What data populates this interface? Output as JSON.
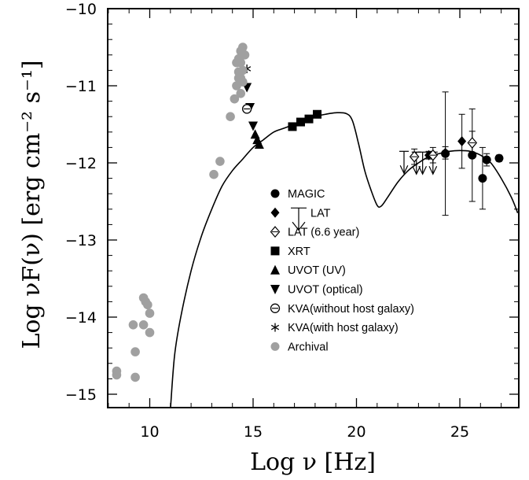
{
  "chart_data": {
    "type": "scatter",
    "xlabel": "Log ν [Hz]",
    "ylabel": "Log νF(ν) [erg cm⁻² s⁻¹]",
    "xlim": [
      8,
      27.8
    ],
    "ylim": [
      -15.15,
      -10
    ],
    "x_ticks": [
      "10",
      "15",
      "20",
      "25"
    ],
    "y_ticks": [
      "−10",
      "−11",
      "−12",
      "−13",
      "−14",
      "−15"
    ],
    "grid": false,
    "legend_position": "center",
    "model_curve": {
      "name": "",
      "points": [
        [
          11.0,
          -15.2
        ],
        [
          11.2,
          -14.5
        ],
        [
          11.5,
          -14.0
        ],
        [
          12.0,
          -13.4
        ],
        [
          12.5,
          -12.95
        ],
        [
          13.0,
          -12.6
        ],
        [
          13.5,
          -12.3
        ],
        [
          14.0,
          -12.1
        ],
        [
          14.5,
          -11.95
        ],
        [
          15.0,
          -11.8
        ],
        [
          15.5,
          -11.7
        ],
        [
          16.0,
          -11.6
        ],
        [
          16.5,
          -11.55
        ],
        [
          17.0,
          -11.5
        ],
        [
          17.5,
          -11.45
        ],
        [
          18.0,
          -11.4
        ],
        [
          18.5,
          -11.37
        ],
        [
          19.0,
          -11.35
        ],
        [
          19.5,
          -11.36
        ],
        [
          19.8,
          -11.45
        ],
        [
          20.1,
          -11.75
        ],
        [
          20.4,
          -12.1
        ],
        [
          20.7,
          -12.35
        ],
        [
          21.0,
          -12.55
        ],
        [
          21.2,
          -12.56
        ],
        [
          21.5,
          -12.45
        ],
        [
          22.0,
          -12.25
        ],
        [
          22.5,
          -12.1
        ],
        [
          23.0,
          -12.0
        ],
        [
          23.5,
          -11.92
        ],
        [
          24.0,
          -11.88
        ],
        [
          24.5,
          -11.85
        ],
        [
          25.0,
          -11.84
        ],
        [
          25.5,
          -11.85
        ],
        [
          26.0,
          -11.9
        ],
        [
          26.5,
          -12.0
        ],
        [
          27.0,
          -12.2
        ],
        [
          27.5,
          -12.45
        ],
        [
          27.8,
          -12.65
        ]
      ]
    },
    "series": [
      {
        "name": "MAGIC",
        "marker": "circle",
        "color": "#000000",
        "points": [
          [
            25.6,
            -11.9,
            0.6
          ],
          [
            26.3,
            -11.96,
            0.08
          ],
          [
            26.9,
            -11.94,
            0.04
          ],
          [
            26.1,
            -12.2,
            0.4
          ],
          [
            24.3,
            -11.88,
            0.8
          ]
        ]
      },
      {
        "name": "LAT",
        "marker": "diamond",
        "color": "#000000",
        "points": [
          [
            23.5,
            -11.9,
            0.05
          ],
          [
            24.3,
            -11.87,
            0.08
          ],
          [
            25.1,
            -11.72,
            0.35
          ]
        ],
        "upper_limits": [
          [
            22.3,
            -11.85
          ],
          [
            22.9,
            -11.86
          ],
          [
            23.2,
            -11.86
          ],
          [
            23.7,
            -11.86
          ]
        ]
      },
      {
        "name": "LAT (6.6 year)",
        "marker": "open-diamond",
        "color": "#000000",
        "points": [
          [
            22.8,
            -11.92,
            0.1
          ],
          [
            23.7,
            -11.9,
            0.1
          ],
          [
            25.6,
            -11.74,
            0.15
          ]
        ]
      },
      {
        "name": "XRT",
        "marker": "square",
        "color": "#000000",
        "points": [
          [
            16.9,
            -11.53
          ],
          [
            17.3,
            -11.47
          ],
          [
            17.7,
            -11.43
          ],
          [
            18.1,
            -11.37
          ]
        ]
      },
      {
        "name": "UVOT (UV)",
        "marker": "triangle-up",
        "color": "#000000",
        "points": [
          [
            15.1,
            -11.63
          ],
          [
            15.2,
            -11.7
          ],
          [
            15.3,
            -11.76
          ]
        ]
      },
      {
        "name": "UVOT (optical)",
        "marker": "triangle-down",
        "color": "#000000",
        "points": [
          [
            14.7,
            -11.02
          ],
          [
            14.85,
            -11.28
          ],
          [
            15.0,
            -11.52
          ]
        ]
      },
      {
        "name": "KVA(without host galaxy)",
        "marker": "circle-minus",
        "color": "#000000",
        "points": [
          [
            14.7,
            -11.3
          ]
        ]
      },
      {
        "name": "KVA(with host galaxy)",
        "marker": "star",
        "color": "#000000",
        "points": [
          [
            14.7,
            -10.78
          ]
        ]
      },
      {
        "name": "Archival",
        "marker": "circle",
        "color": "#a0a0a0",
        "points": [
          [
            8.4,
            -14.75
          ],
          [
            8.4,
            -14.7
          ],
          [
            9.2,
            -14.1
          ],
          [
            9.3,
            -14.45
          ],
          [
            9.3,
            -14.78
          ],
          [
            9.7,
            -13.75
          ],
          [
            9.8,
            -13.8
          ],
          [
            9.9,
            -13.84
          ],
          [
            9.7,
            -14.1
          ],
          [
            10.0,
            -13.95
          ],
          [
            10.0,
            -14.2
          ],
          [
            13.1,
            -12.15
          ],
          [
            13.4,
            -11.98
          ],
          [
            13.9,
            -11.4
          ],
          [
            14.1,
            -11.17
          ],
          [
            14.2,
            -11.0
          ],
          [
            14.3,
            -10.9
          ],
          [
            14.3,
            -10.65
          ],
          [
            14.4,
            -10.55
          ],
          [
            14.5,
            -10.5
          ],
          [
            14.4,
            -10.7
          ],
          [
            14.5,
            -10.8
          ],
          [
            14.3,
            -10.82
          ],
          [
            14.4,
            -10.9
          ],
          [
            14.6,
            -10.6
          ],
          [
            14.4,
            -11.1
          ],
          [
            14.2,
            -10.7
          ],
          [
            14.5,
            -10.95
          ]
        ]
      }
    ]
  }
}
